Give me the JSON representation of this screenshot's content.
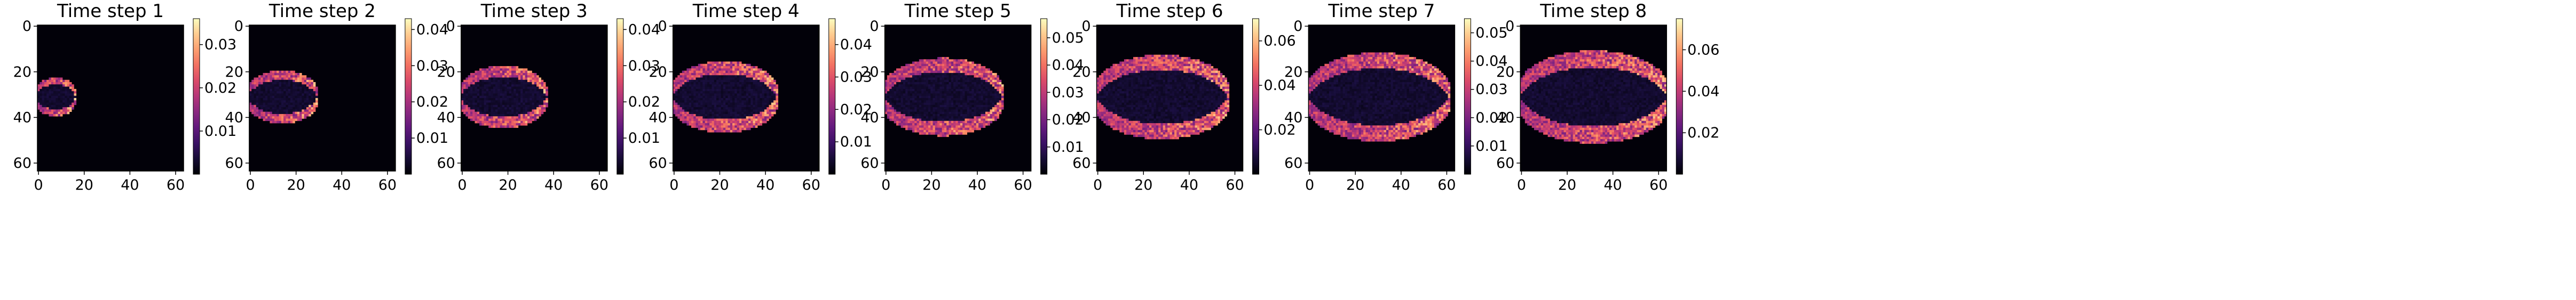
{
  "chart_data": [
    {
      "type": "heatmap",
      "title": "Time step 1",
      "xticks": [
        "0",
        "20",
        "40",
        "60"
      ],
      "yticks": [
        "0",
        "20",
        "40",
        "60"
      ],
      "colorbar_ticks": [
        "0.01",
        "0.02",
        "0.03"
      ],
      "colorbar_values": [
        0.01,
        0.02,
        0.03
      ],
      "vmin": 0.0,
      "vmax": 0.036,
      "extent": [
        0,
        64
      ],
      "front_x": 15,
      "colormap": "magma"
    },
    {
      "type": "heatmap",
      "title": "Time step 2",
      "xticks": [
        "0",
        "20",
        "40",
        "60"
      ],
      "yticks": [
        "0",
        "20",
        "40",
        "60"
      ],
      "colorbar_ticks": [
        "0.01",
        "0.02",
        "0.03",
        "0.04"
      ],
      "colorbar_values": [
        0.01,
        0.02,
        0.03,
        0.04
      ],
      "vmin": 0.0,
      "vmax": 0.043,
      "extent": [
        0,
        64
      ],
      "front_x": 28,
      "colormap": "magma"
    },
    {
      "type": "heatmap",
      "title": "Time step 3",
      "xticks": [
        "0",
        "20",
        "40",
        "60"
      ],
      "yticks": [
        "0",
        "20",
        "40",
        "60"
      ],
      "colorbar_ticks": [
        "0.01",
        "0.02",
        "0.03",
        "0.04"
      ],
      "colorbar_values": [
        0.01,
        0.02,
        0.03,
        0.04
      ],
      "vmin": 0.0,
      "vmax": 0.043,
      "extent": [
        0,
        64
      ],
      "front_x": 36,
      "colormap": "magma"
    },
    {
      "type": "heatmap",
      "title": "Time step 4",
      "xticks": [
        "0",
        "20",
        "40",
        "60"
      ],
      "yticks": [
        "0",
        "20",
        "40",
        "60"
      ],
      "colorbar_ticks": [
        "0.01",
        "0.02",
        "0.03",
        "0.04"
      ],
      "colorbar_values": [
        0.01,
        0.02,
        0.03,
        0.04
      ],
      "vmin": 0.0,
      "vmax": 0.048,
      "extent": [
        0,
        64
      ],
      "front_x": 44,
      "colormap": "magma"
    },
    {
      "type": "heatmap",
      "title": "Time step 5",
      "xticks": [
        "0",
        "20",
        "40",
        "60"
      ],
      "yticks": [
        "0",
        "20",
        "40",
        "60"
      ],
      "colorbar_ticks": [
        "0.01",
        "0.02",
        "0.03",
        "0.04",
        "0.05"
      ],
      "colorbar_values": [
        0.01,
        0.02,
        0.03,
        0.04,
        0.05
      ],
      "vmin": 0.0,
      "vmax": 0.057,
      "extent": [
        0,
        64
      ],
      "front_x": 50,
      "colormap": "magma"
    },
    {
      "type": "heatmap",
      "title": "Time step 6",
      "xticks": [
        "0",
        "20",
        "40",
        "60"
      ],
      "yticks": [
        "0",
        "20",
        "40",
        "60"
      ],
      "colorbar_ticks": [
        "0.02",
        "0.04",
        "0.06"
      ],
      "colorbar_values": [
        0.02,
        0.04,
        0.06
      ],
      "vmin": 0.0,
      "vmax": 0.07,
      "extent": [
        0,
        64
      ],
      "front_x": 56,
      "colormap": "magma"
    },
    {
      "type": "heatmap",
      "title": "Time step 7",
      "xticks": [
        "0",
        "20",
        "40",
        "60"
      ],
      "yticks": [
        "0",
        "20",
        "40",
        "60"
      ],
      "colorbar_ticks": [
        "0.01",
        "0.02",
        "0.03",
        "0.04",
        "0.05"
      ],
      "colorbar_values": [
        0.01,
        0.02,
        0.03,
        0.04,
        0.05
      ],
      "vmin": 0.0,
      "vmax": 0.055,
      "extent": [
        0,
        64
      ],
      "front_x": 60,
      "colormap": "magma"
    },
    {
      "type": "heatmap",
      "title": "Time step 8",
      "xticks": [
        "0",
        "20",
        "40",
        "60"
      ],
      "yticks": [
        "0",
        "20",
        "40",
        "60"
      ],
      "colorbar_ticks": [
        "0.02",
        "0.04",
        "0.06"
      ],
      "colorbar_values": [
        0.02,
        0.04,
        0.06
      ],
      "vmin": 0.0,
      "vmax": 0.075,
      "extent": [
        0,
        64
      ],
      "front_x": 63,
      "colormap": "magma"
    }
  ]
}
